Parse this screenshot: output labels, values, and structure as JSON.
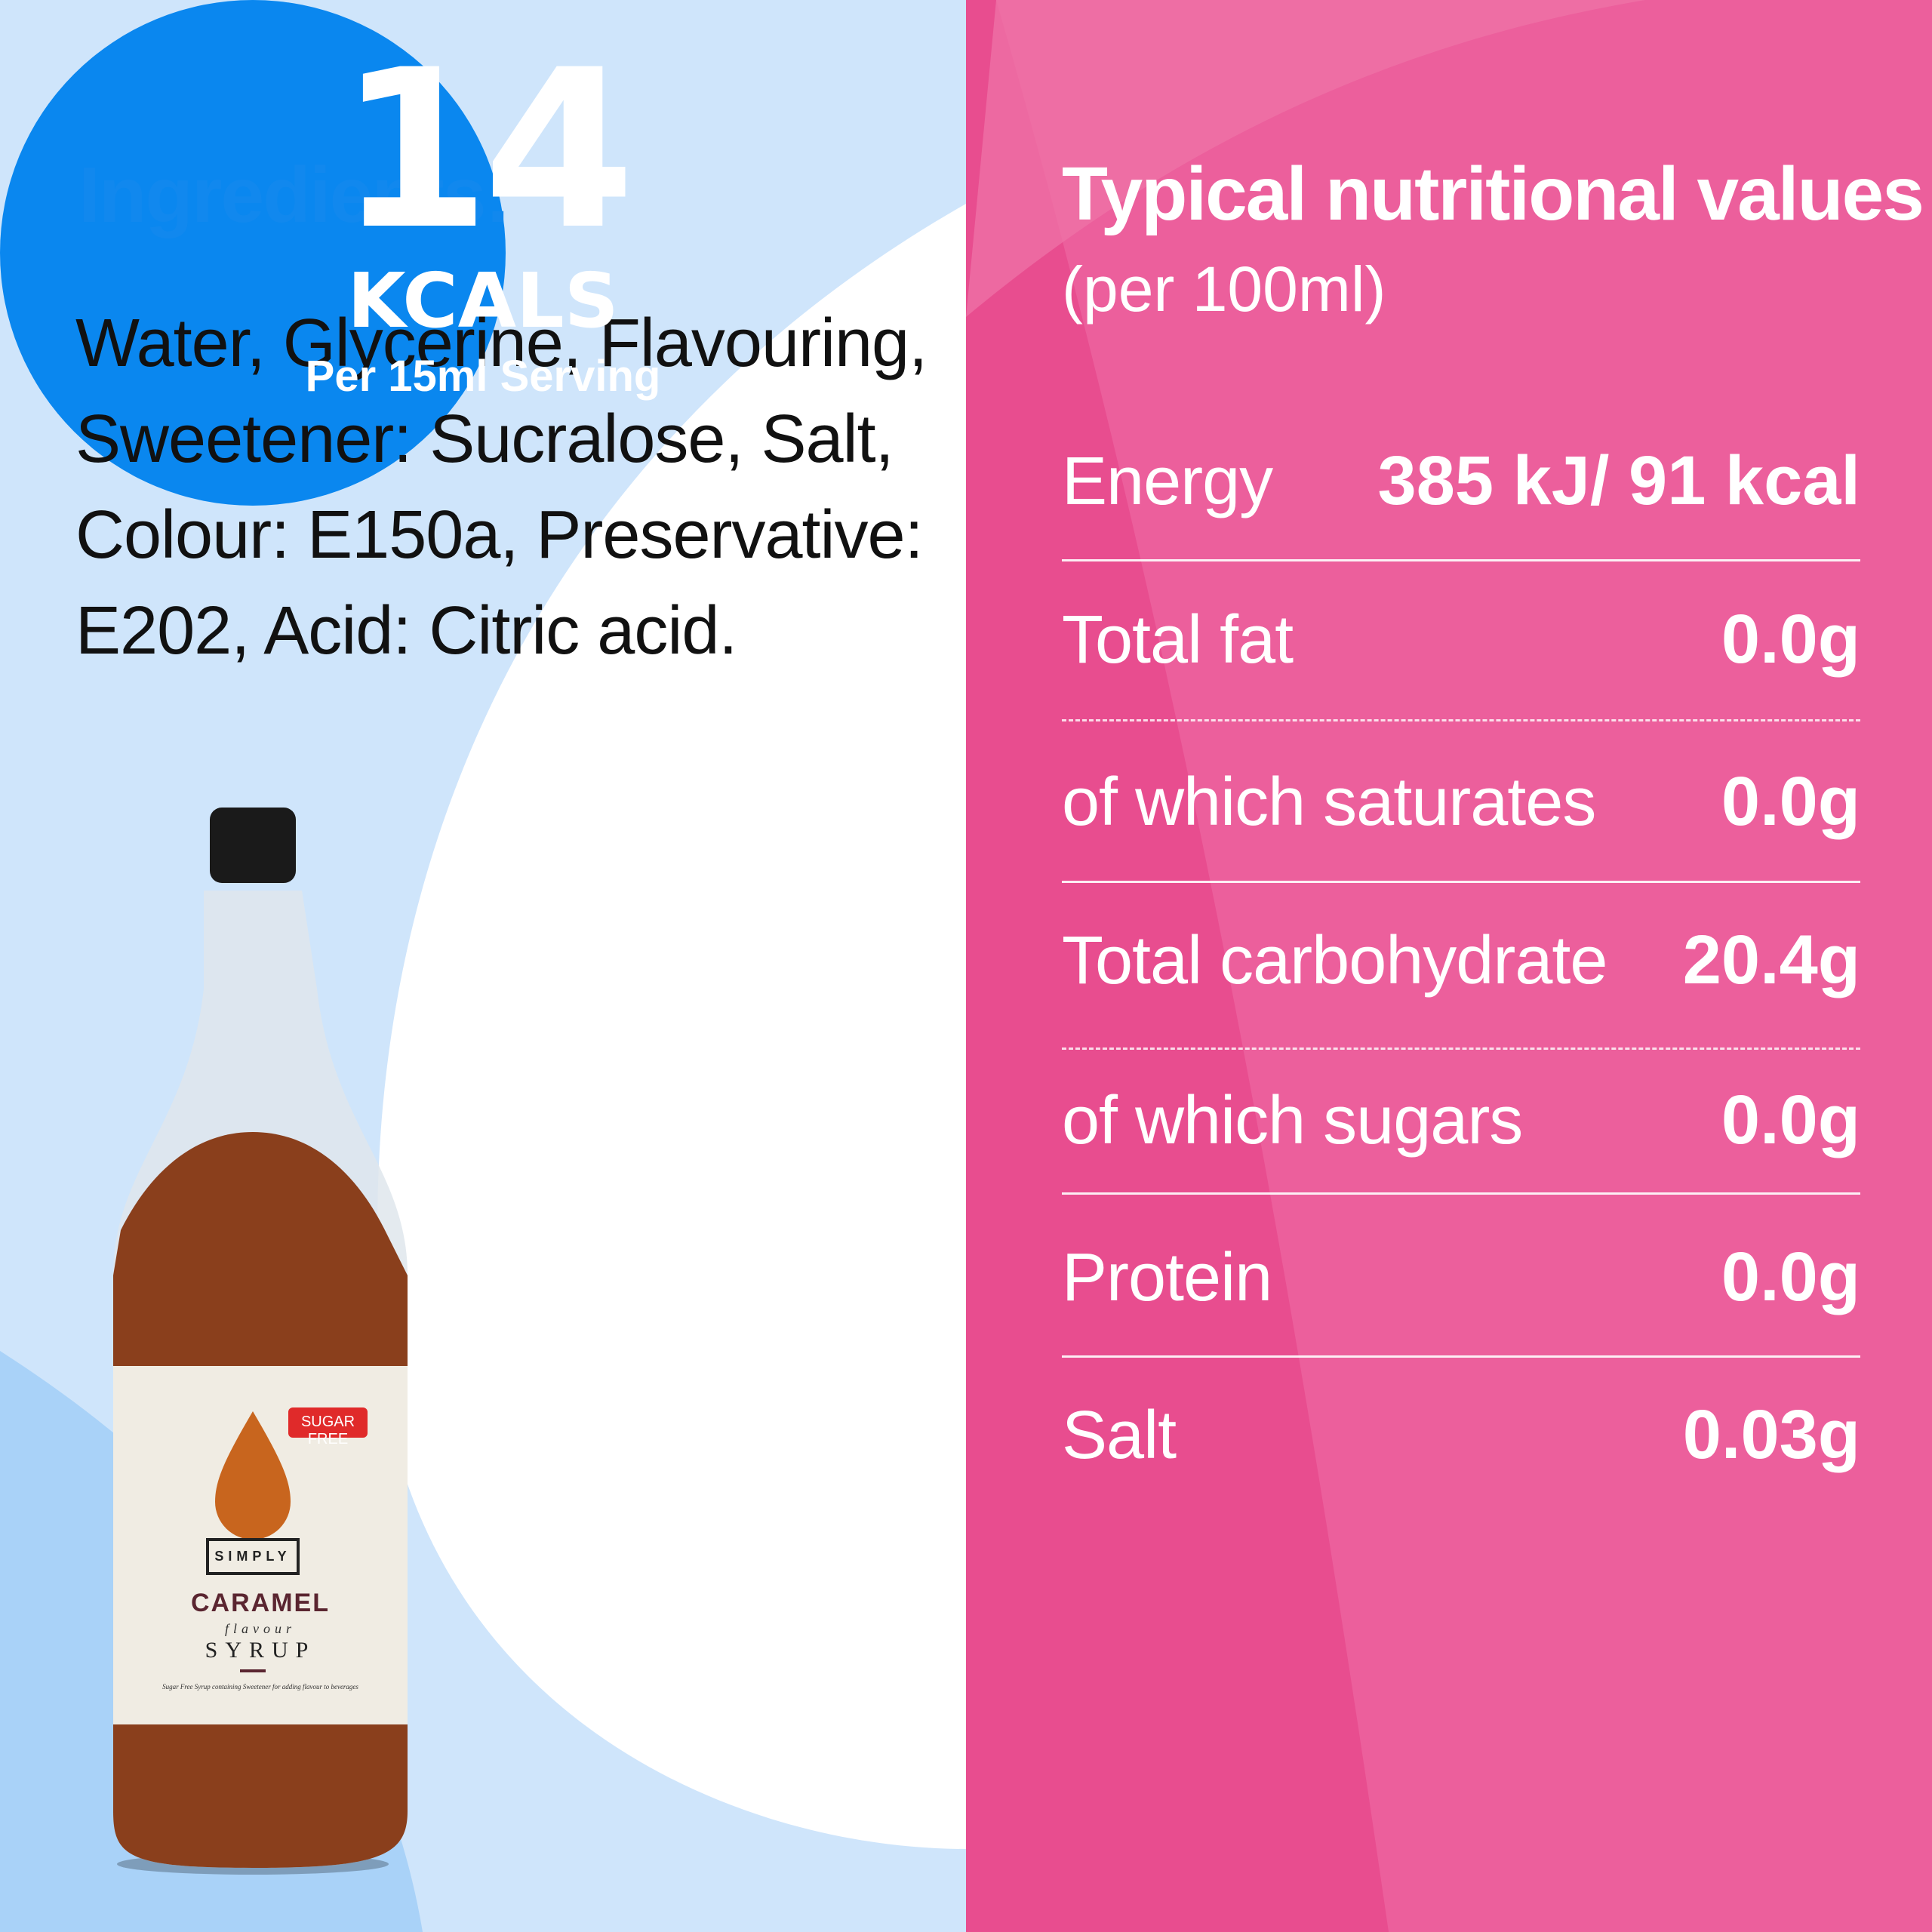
{
  "colors": {
    "left_bg": "#cfe5fb",
    "right_bg": "#e84d8f",
    "accent_blue": "#0a87ef",
    "title_blue": "#1188ee"
  },
  "ingredients": {
    "title": "Ingredients:",
    "text": "Water, Glycerine, Flavouring, Sweetener: Sucralose, Salt, Colour: E150a, Preservative: E202, Acid: Citric acid."
  },
  "badge": {
    "number": "14",
    "unit": "KCALS",
    "serving": "Per 15ml Serving"
  },
  "bottle": {
    "brand": "SIMPLY",
    "flavour": "CARAMEL",
    "flavour_word": "flavour",
    "product": "SYRUP",
    "tag": "SUGAR FREE",
    "description": "Sugar Free Syrup containing Sweetener for adding flavour to beverages"
  },
  "nutrition": {
    "title": "Typical nutritional values",
    "subtitle": "(per 100ml)",
    "rows": [
      {
        "label": "Energy",
        "value": "385 kJ/ 91 kcal"
      },
      {
        "label": "Total fat",
        "value": "0.0g"
      },
      {
        "label": "of which saturates",
        "value": "0.0g"
      },
      {
        "label": "Total carbohydrate",
        "value": "20.4g"
      },
      {
        "label": "of which sugars",
        "value": "0.0g"
      },
      {
        "label": "Protein",
        "value": "0.0g"
      },
      {
        "label": "Salt",
        "value": "0.03g"
      }
    ]
  }
}
